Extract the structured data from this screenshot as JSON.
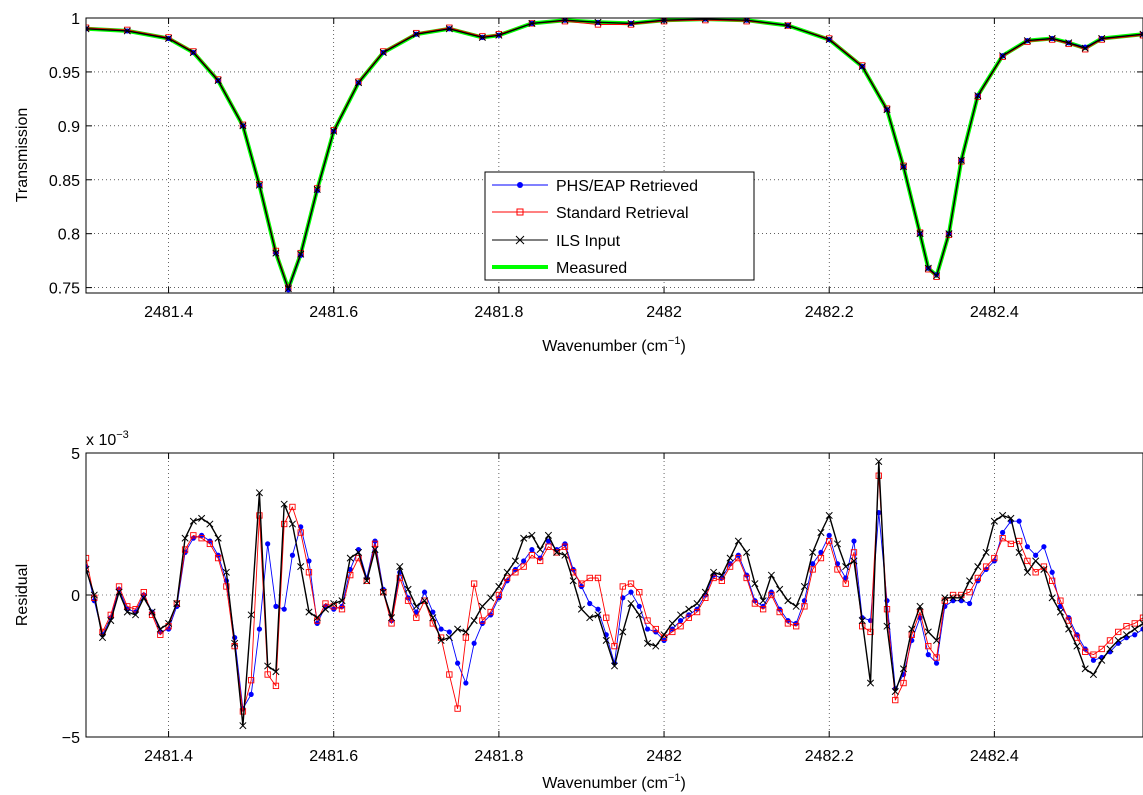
{
  "figure": {
    "top": {
      "ylabel": "Transmission",
      "xlabel_main": "Wavenumber (cm",
      "xlabel_sup": "−1",
      "xlabel_close": ")"
    },
    "bottom": {
      "ylabel": "Residual",
      "xlabel_main": "Wavenumber (cm",
      "xlabel_sup": "−1",
      "xlabel_close": ")",
      "exponent_prefix": "x 10",
      "exponent_power": "−3"
    },
    "legend": [
      {
        "label": "PHS/EAP Retrieved",
        "color": "#0000ff",
        "marker": "dot"
      },
      {
        "label": "Standard Retrieval",
        "color": "#ff0000",
        "marker": "square"
      },
      {
        "label": "ILS Input",
        "color": "#000000",
        "marker": "x"
      },
      {
        "label": "Measured",
        "color": "#00ff00",
        "marker": "none"
      }
    ]
  },
  "chart_data": [
    {
      "type": "line",
      "ylabel": "Transmission",
      "xlabel": "Wavenumber (cm−1)",
      "xlim": [
        2481.3,
        2482.58
      ],
      "ylim": [
        0.745,
        1.0
      ],
      "xticks": [
        "2481.4",
        "2481.6",
        "2481.8",
        "2482",
        "2482.2",
        "2482.4"
      ],
      "xtick_values": [
        2481.4,
        2481.6,
        2481.8,
        2482.0,
        2482.2,
        2482.4
      ],
      "yticks": [
        "0.75",
        "0.8",
        "0.85",
        "0.9",
        "0.95",
        "1"
      ],
      "ytick_values": [
        0.75,
        0.8,
        0.85,
        0.9,
        0.95,
        1.0
      ],
      "grid": true,
      "legend_position": "center",
      "x": [
        2481.3,
        2481.35,
        2481.4,
        2481.43,
        2481.46,
        2481.49,
        2481.51,
        2481.53,
        2481.545,
        2481.56,
        2481.58,
        2481.6,
        2481.63,
        2481.66,
        2481.7,
        2481.74,
        2481.78,
        2481.8,
        2481.84,
        2481.88,
        2481.92,
        2481.96,
        2482.0,
        2482.05,
        2482.1,
        2482.15,
        2482.2,
        2482.24,
        2482.27,
        2482.29,
        2482.31,
        2482.32,
        2482.33,
        2482.345,
        2482.36,
        2482.38,
        2482.41,
        2482.44,
        2482.47,
        2482.49,
        2482.51,
        2482.53,
        2482.58
      ],
      "series": [
        {
          "name": "PHS/EAP Retrieved",
          "color": "#0000ff",
          "marker": "dot",
          "values": [
            0.99,
            0.988,
            0.981,
            0.968,
            0.942,
            0.9,
            0.845,
            0.782,
            0.748,
            0.78,
            0.84,
            0.895,
            0.94,
            0.968,
            0.985,
            0.99,
            0.982,
            0.984,
            0.995,
            0.998,
            0.996,
            0.995,
            0.998,
            0.999,
            0.998,
            0.993,
            0.98,
            0.955,
            0.915,
            0.862,
            0.8,
            0.768,
            0.762,
            0.8,
            0.868,
            0.928,
            0.965,
            0.979,
            0.981,
            0.977,
            0.973,
            0.981,
            0.985
          ]
        },
        {
          "name": "Standard Retrieval",
          "color": "#ff0000",
          "marker": "square",
          "values": [
            0.991,
            0.989,
            0.982,
            0.969,
            0.943,
            0.901,
            0.846,
            0.784,
            0.75,
            0.782,
            0.842,
            0.896,
            0.941,
            0.969,
            0.986,
            0.991,
            0.983,
            0.985,
            0.995,
            0.997,
            0.994,
            0.994,
            0.997,
            0.998,
            0.997,
            0.993,
            0.981,
            0.956,
            0.916,
            0.863,
            0.801,
            0.767,
            0.76,
            0.799,
            0.867,
            0.927,
            0.964,
            0.978,
            0.98,
            0.976,
            0.971,
            0.98,
            0.984
          ]
        },
        {
          "name": "ILS Input",
          "color": "#000000",
          "marker": "x",
          "values": [
            0.99,
            0.988,
            0.981,
            0.968,
            0.942,
            0.9,
            0.845,
            0.782,
            0.749,
            0.781,
            0.841,
            0.895,
            0.94,
            0.968,
            0.985,
            0.99,
            0.982,
            0.984,
            0.995,
            0.998,
            0.996,
            0.995,
            0.998,
            0.999,
            0.998,
            0.993,
            0.98,
            0.955,
            0.915,
            0.862,
            0.8,
            0.768,
            0.761,
            0.8,
            0.868,
            0.928,
            0.965,
            0.979,
            0.981,
            0.977,
            0.972,
            0.981,
            0.985
          ]
        },
        {
          "name": "Measured",
          "color": "#00ff00",
          "marker": "none",
          "values": [
            0.99,
            0.988,
            0.981,
            0.968,
            0.942,
            0.9,
            0.845,
            0.782,
            0.749,
            0.781,
            0.841,
            0.895,
            0.94,
            0.968,
            0.985,
            0.99,
            0.982,
            0.984,
            0.995,
            0.998,
            0.996,
            0.995,
            0.998,
            0.999,
            0.998,
            0.993,
            0.98,
            0.955,
            0.915,
            0.862,
            0.8,
            0.768,
            0.761,
            0.8,
            0.868,
            0.928,
            0.965,
            0.979,
            0.981,
            0.977,
            0.972,
            0.981,
            0.985
          ]
        }
      ]
    },
    {
      "type": "line",
      "ylabel": "Residual",
      "xlabel": "Wavenumber (cm−1)",
      "y_scale_label": "x 10−3",
      "xlim": [
        2481.3,
        2482.58
      ],
      "ylim": [
        -5,
        5
      ],
      "xticks": [
        "2481.4",
        "2481.6",
        "2481.8",
        "2482",
        "2482.2",
        "2482.4"
      ],
      "xtick_values": [
        2481.4,
        2481.6,
        2481.8,
        2482.0,
        2482.2,
        2482.4
      ],
      "yticks": [
        "−5",
        "0",
        "5"
      ],
      "ytick_values": [
        -5,
        0,
        5
      ],
      "grid": true,
      "x": [
        2481.3,
        2481.31,
        2481.32,
        2481.33,
        2481.34,
        2481.35,
        2481.36,
        2481.37,
        2481.38,
        2481.39,
        2481.4,
        2481.41,
        2481.42,
        2481.43,
        2481.44,
        2481.45,
        2481.46,
        2481.47,
        2481.48,
        2481.49,
        2481.5,
        2481.51,
        2481.52,
        2481.53,
        2481.54,
        2481.55,
        2481.56,
        2481.57,
        2481.58,
        2481.59,
        2481.6,
        2481.61,
        2481.62,
        2481.63,
        2481.64,
        2481.65,
        2481.66,
        2481.67,
        2481.68,
        2481.69,
        2481.7,
        2481.71,
        2481.72,
        2481.73,
        2481.74,
        2481.75,
        2481.76,
        2481.77,
        2481.78,
        2481.79,
        2481.8,
        2481.81,
        2481.82,
        2481.83,
        2481.84,
        2481.85,
        2481.86,
        2481.87,
        2481.88,
        2481.89,
        2481.9,
        2481.91,
        2481.92,
        2481.93,
        2481.94,
        2481.95,
        2481.96,
        2481.97,
        2481.98,
        2481.99,
        2482.0,
        2482.01,
        2482.02,
        2482.03,
        2482.04,
        2482.05,
        2482.06,
        2482.07,
        2482.08,
        2482.09,
        2482.1,
        2482.11,
        2482.12,
        2482.13,
        2482.14,
        2482.15,
        2482.16,
        2482.17,
        2482.18,
        2482.19,
        2482.2,
        2482.21,
        2482.22,
        2482.23,
        2482.24,
        2482.25,
        2482.26,
        2482.27,
        2482.28,
        2482.29,
        2482.3,
        2482.31,
        2482.32,
        2482.33,
        2482.34,
        2482.35,
        2482.36,
        2482.37,
        2482.38,
        2482.39,
        2482.4,
        2482.41,
        2482.42,
        2482.43,
        2482.44,
        2482.45,
        2482.46,
        2482.47,
        2482.48,
        2482.49,
        2482.5,
        2482.51,
        2482.52,
        2482.53,
        2482.54,
        2482.55,
        2482.56,
        2482.57,
        2482.58
      ],
      "series": [
        {
          "name": "PHS/EAP Retrieved",
          "color": "#0000ff",
          "marker": "dot",
          "values": [
            1.0,
            -0.2,
            -1.4,
            -0.8,
            0.2,
            -0.5,
            -0.6,
            0.0,
            -0.6,
            -1.3,
            -1.2,
            -0.4,
            1.5,
            2.0,
            2.1,
            1.9,
            1.4,
            0.5,
            -1.5,
            -4.0,
            -3.5,
            -1.2,
            1.8,
            -0.4,
            -0.5,
            1.4,
            2.4,
            1.2,
            -1.0,
            -0.4,
            -0.5,
            -0.4,
            0.9,
            1.6,
            0.6,
            1.9,
            0.2,
            -0.9,
            0.8,
            -0.1,
            -0.6,
            0.1,
            -0.6,
            -1.2,
            -1.3,
            -2.4,
            -3.1,
            -1.7,
            -1.0,
            -0.7,
            -0.1,
            0.5,
            0.9,
            1.2,
            1.6,
            1.3,
            1.9,
            1.6,
            1.8,
            0.9,
            0.3,
            -0.3,
            -0.5,
            -1.4,
            -2.4,
            -0.1,
            0.1,
            -0.4,
            -1.2,
            -1.3,
            -1.6,
            -1.2,
            -0.9,
            -0.7,
            -0.5,
            0.0,
            0.7,
            0.6,
            1.1,
            1.4,
            0.7,
            -0.2,
            -0.4,
            0.1,
            -0.5,
            -0.9,
            -1.0,
            -0.2,
            1.1,
            1.5,
            2.1,
            1.1,
            0.6,
            1.9,
            -0.8,
            -0.9,
            2.9,
            -0.2,
            -3.3,
            -2.8,
            -1.6,
            -0.8,
            -2.1,
            -2.4,
            -0.4,
            -0.2,
            -0.2,
            -0.3,
            0.5,
            0.9,
            1.2,
            2.2,
            2.6,
            2.6,
            1.7,
            1.4,
            1.7,
            0.8,
            -0.4,
            -0.8,
            -1.4,
            -1.9,
            -2.3,
            -2.2,
            -2.0,
            -1.7,
            -1.5,
            -1.4,
            -1.2
          ]
        },
        {
          "name": "Standard Retrieval",
          "color": "#ff0000",
          "marker": "square",
          "values": [
            1.3,
            -0.1,
            -1.3,
            -0.7,
            0.3,
            -0.4,
            -0.5,
            0.1,
            -0.7,
            -1.4,
            -1.1,
            -0.3,
            1.6,
            2.1,
            2.0,
            1.8,
            1.3,
            0.3,
            -1.8,
            -4.1,
            -3.0,
            2.8,
            -2.8,
            -3.2,
            2.5,
            3.1,
            2.2,
            0.8,
            -0.9,
            -0.3,
            -0.4,
            -0.5,
            0.7,
            1.3,
            0.5,
            1.8,
            0.1,
            -1.0,
            0.6,
            -0.2,
            -0.8,
            -0.2,
            -1.0,
            -1.5,
            -2.8,
            -4.0,
            -1.5,
            0.4,
            -0.9,
            -0.6,
            0.0,
            0.6,
            0.8,
            1.0,
            1.4,
            1.2,
            1.7,
            1.5,
            1.7,
            0.8,
            0.4,
            0.6,
            0.6,
            -0.8,
            -1.8,
            0.3,
            0.4,
            0.1,
            -0.9,
            -1.2,
            -1.5,
            -1.3,
            -1.1,
            -0.8,
            -0.6,
            -0.1,
            0.6,
            0.5,
            1.0,
            1.3,
            0.6,
            -0.3,
            -0.5,
            0.0,
            -0.6,
            -1.0,
            -1.1,
            -0.4,
            0.9,
            1.3,
            1.9,
            0.9,
            0.4,
            1.5,
            -1.1,
            -1.3,
            4.2,
            -0.5,
            -3.7,
            -3.1,
            -1.4,
            -0.6,
            -1.8,
            -2.2,
            -0.2,
            0.0,
            0.0,
            0.1,
            0.6,
            1.0,
            1.3,
            2.0,
            1.8,
            1.9,
            1.2,
            0.8,
            1.0,
            0.5,
            -0.2,
            -0.9,
            -1.5,
            -2.0,
            -2.1,
            -1.9,
            -1.6,
            -1.3,
            -1.1,
            -1.0,
            -0.8
          ]
        },
        {
          "name": "ILS Input",
          "color": "#000000",
          "marker": "x",
          "values": [
            0.9,
            0.0,
            -1.5,
            -0.9,
            0.1,
            -0.6,
            -0.7,
            -0.1,
            -0.6,
            -1.2,
            -1.0,
            -0.3,
            2.0,
            2.6,
            2.7,
            2.5,
            2.0,
            0.8,
            -1.7,
            -4.6,
            -0.7,
            3.6,
            -2.5,
            -2.7,
            3.2,
            2.5,
            1.0,
            -0.6,
            -0.8,
            -0.5,
            -0.3,
            -0.2,
            1.3,
            1.5,
            0.5,
            1.6,
            0.1,
            -0.8,
            1.0,
            0.2,
            -0.4,
            -0.2,
            -0.8,
            -1.6,
            -1.5,
            -1.2,
            -1.3,
            -0.9,
            -0.4,
            -0.1,
            0.3,
            0.8,
            1.2,
            2.0,
            2.1,
            1.6,
            2.1,
            1.5,
            1.4,
            0.5,
            -0.5,
            -0.8,
            -0.7,
            -1.6,
            -2.5,
            -1.3,
            -0.3,
            -0.7,
            -1.7,
            -1.8,
            -1.4,
            -1.0,
            -0.7,
            -0.5,
            -0.3,
            0.1,
            0.8,
            0.7,
            1.3,
            1.9,
            1.5,
            0.4,
            -0.2,
            0.7,
            0.2,
            -0.2,
            -0.4,
            0.3,
            1.5,
            2.2,
            2.8,
            1.8,
            1.0,
            1.2,
            -0.9,
            -3.1,
            4.7,
            -1.1,
            -3.4,
            -2.6,
            -1.2,
            -0.4,
            -1.3,
            -1.6,
            -0.1,
            -0.1,
            -0.1,
            0.5,
            1.0,
            1.5,
            2.6,
            2.8,
            2.7,
            1.5,
            0.8,
            1.2,
            0.9,
            -0.1,
            -0.6,
            -1.2,
            -1.8,
            -2.6,
            -2.8,
            -2.3,
            -1.9,
            -1.6,
            -1.4,
            -1.2,
            -1.0
          ]
        }
      ]
    }
  ]
}
